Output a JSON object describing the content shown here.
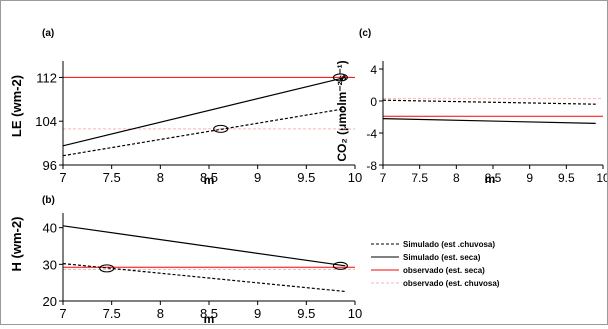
{
  "colors": {
    "simulated": "#000000",
    "observed": "#ff0000",
    "observed_light": "#ffb3b3",
    "background": "#ffffff"
  },
  "legend": {
    "entries": [
      {
        "label": "Simulado (est .chuvosa)",
        "style": "dashed",
        "color": "#000000"
      },
      {
        "label": "Simulado (est. seca)",
        "style": "solid",
        "color": "#000000"
      },
      {
        "label": "observado (est. seca)",
        "style": "solid",
        "color": "#ff0000"
      },
      {
        "label": "observado (est. chuvosa)",
        "style": "dashed",
        "color": "#ffb3b3"
      }
    ]
  },
  "chart_data": [
    {
      "panel": "(a)",
      "type": "line",
      "xlabel": "m",
      "ylabel": "LE (wm-2)",
      "xlim": [
        7,
        10
      ],
      "ylim": [
        96,
        115
      ],
      "xticks": [
        7,
        7.5,
        8,
        8.5,
        9,
        9.5,
        10
      ],
      "xtick_labels": [
        "7",
        "7.5",
        "8",
        "8.5",
        "9",
        "9.5",
        "10"
      ],
      "yticks": [
        96,
        104,
        112
      ],
      "ytick_labels": [
        "96",
        "104",
        "112"
      ],
      "series": [
        {
          "name": "Simulado (est. seca)",
          "x": [
            7,
            9.9
          ],
          "y": [
            99.5,
            112
          ],
          "style": "solid",
          "color": "#000000"
        },
        {
          "name": "Simulado (est .chuvosa)",
          "x": [
            7,
            9.9
          ],
          "y": [
            97.7,
            106.3
          ],
          "style": "dashed",
          "color": "#000000"
        },
        {
          "name": "observado (est. seca)",
          "x": [
            7,
            10
          ],
          "y": [
            112,
            112
          ],
          "style": "solid",
          "color": "#ff0000"
        },
        {
          "name": "observado (est. chuvosa)",
          "x": [
            7,
            10
          ],
          "y": [
            102.6,
            102.6
          ],
          "style": "dashed",
          "color": "#ffb3b3"
        }
      ],
      "markers": [
        {
          "x": 9.85,
          "y": 112
        },
        {
          "x": 8.62,
          "y": 102.6
        }
      ]
    },
    {
      "panel": "(b)",
      "type": "line",
      "xlabel": "m",
      "ylabel": "H (wm-2)",
      "xlim": [
        7,
        10
      ],
      "ylim": [
        20,
        44
      ],
      "xticks": [
        7,
        7.5,
        8,
        8.5,
        9,
        9.5,
        10
      ],
      "xtick_labels": [
        "7",
        "7.5",
        "8",
        "8.5",
        "9",
        "9.5",
        "10"
      ],
      "yticks": [
        20,
        30,
        40
      ],
      "ytick_labels": [
        "20",
        "30",
        "40"
      ],
      "series": [
        {
          "name": "Simulado (est. seca)",
          "x": [
            7,
            9.9
          ],
          "y": [
            40.5,
            29.6
          ],
          "style": "solid",
          "color": "#000000"
        },
        {
          "name": "Simulado (est .chuvosa)",
          "x": [
            7,
            9.9
          ],
          "y": [
            30.2,
            22.6
          ],
          "style": "dashed",
          "color": "#000000"
        },
        {
          "name": "observado (est. seca)",
          "x": [
            7,
            10
          ],
          "y": [
            29.2,
            29.2
          ],
          "style": "solid",
          "color": "#ff0000"
        },
        {
          "name": "observado (est. chuvosa)",
          "x": [
            7,
            10
          ],
          "y": [
            28.6,
            28.6
          ],
          "style": "dashed",
          "color": "#ffb3b3"
        }
      ],
      "markers": [
        {
          "x": 7.45,
          "y": 28.9
        },
        {
          "x": 9.85,
          "y": 29.6
        }
      ]
    },
    {
      "panel": "(c)",
      "type": "line",
      "xlabel": "m",
      "ylabel": "CO₂ (μmolm⁻²s⁻¹)",
      "xlim": [
        7,
        10
      ],
      "ylim": [
        -8,
        5
      ],
      "xticks": [
        7,
        7.5,
        8,
        8.5,
        9,
        9.5,
        10
      ],
      "xtick_labels": [
        "7",
        "7.5",
        "8",
        "8.5",
        "9",
        "9.5",
        "10"
      ],
      "yticks": [
        -8,
        -4,
        0,
        4
      ],
      "ytick_labels": [
        "-8",
        "-4",
        "0",
        "4"
      ],
      "series": [
        {
          "name": "Simulado (est. seca)",
          "x": [
            7,
            9.9
          ],
          "y": [
            -2.2,
            -2.8
          ],
          "style": "solid",
          "color": "#000000"
        },
        {
          "name": "Simulado (est .chuvosa)",
          "x": [
            7,
            9.9
          ],
          "y": [
            0.1,
            -0.4
          ],
          "style": "dashed",
          "color": "#000000"
        },
        {
          "name": "observado (est. seca)",
          "x": [
            7,
            10
          ],
          "y": [
            -1.9,
            -1.9
          ],
          "style": "solid",
          "color": "#ff0000"
        },
        {
          "name": "observado (est. chuvosa)",
          "x": [
            7,
            10
          ],
          "y": [
            0.3,
            0.3
          ],
          "style": "dashed",
          "color": "#ffb3b3"
        }
      ],
      "markers": []
    }
  ]
}
